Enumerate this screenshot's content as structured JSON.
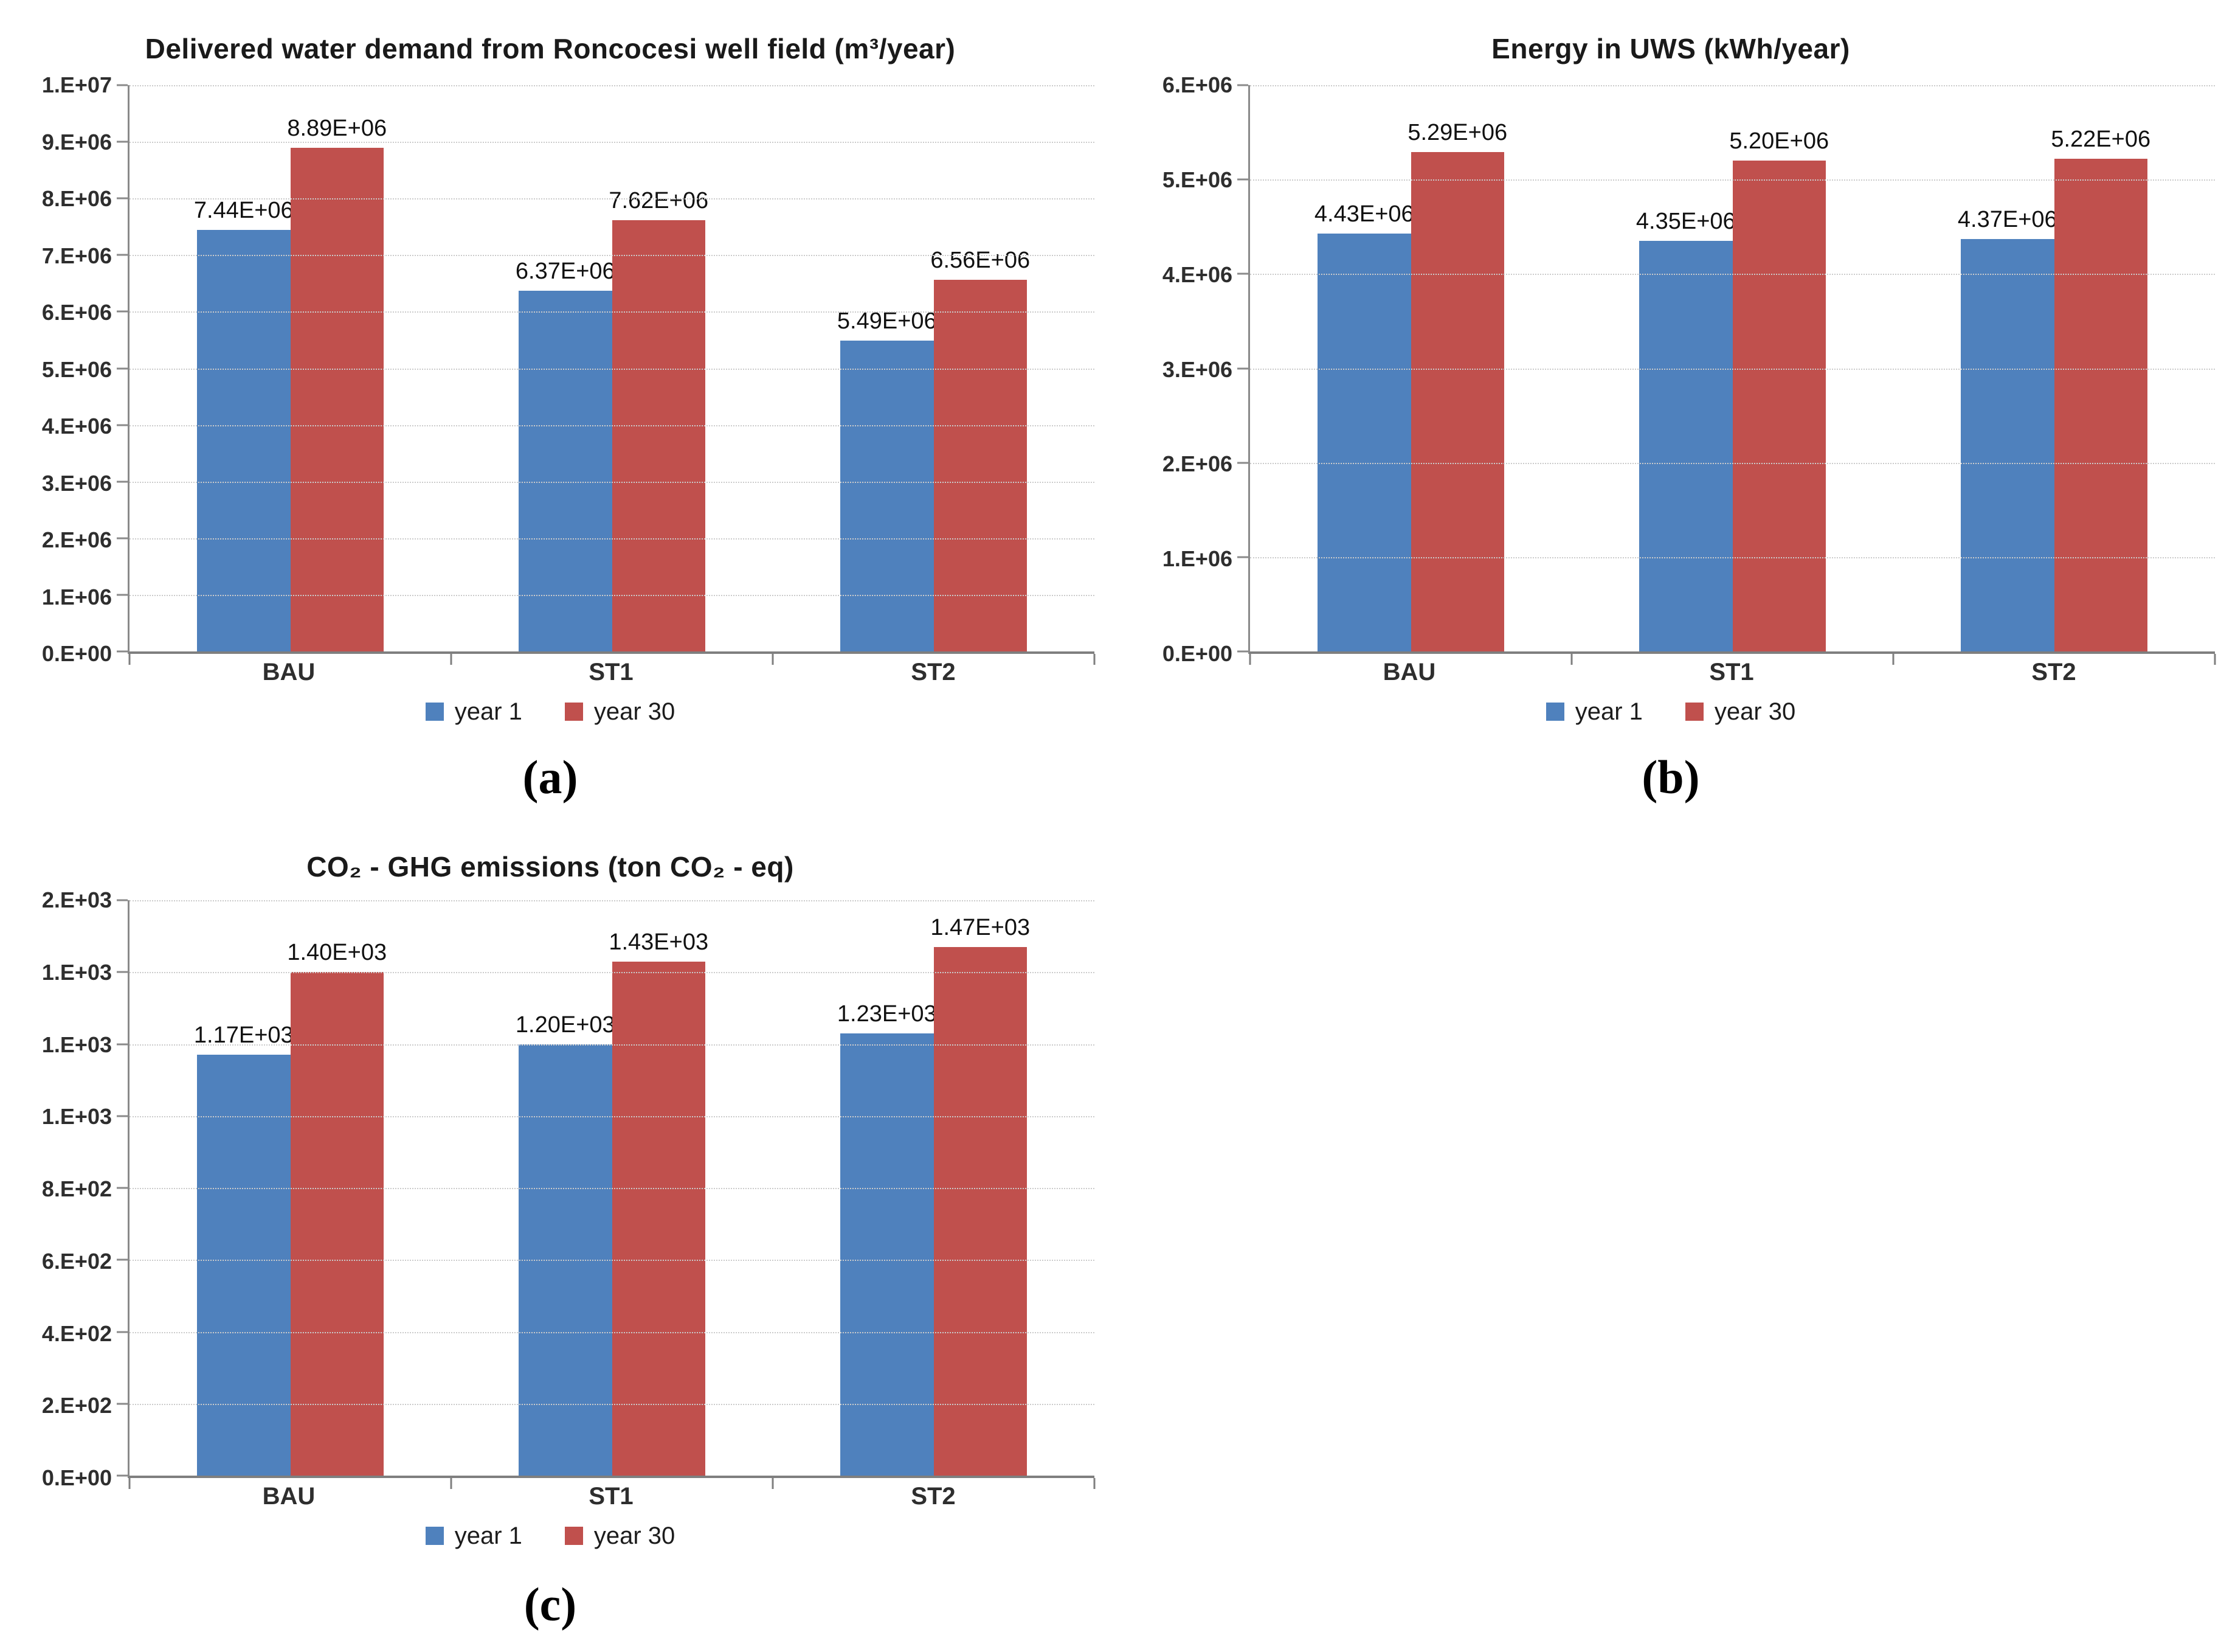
{
  "figure": {
    "series_colors": {
      "year 1": "#4F81BD",
      "year 30": "#C0504D"
    },
    "axis_color": "#7f7f7f",
    "gridline_color": "#cbcbcb"
  },
  "chart_data": [
    {
      "id": "chart-a",
      "type": "bar",
      "title": "Delivered water demand from Roncocesi well field (m³/year)",
      "caption": "(a)",
      "categories": [
        "BAU",
        "ST1",
        "ST2"
      ],
      "series": [
        {
          "name": "year 1",
          "color": "#4F81BD",
          "values": [
            7440000,
            6370000,
            5490000
          ],
          "labels": [
            "7.44E+06",
            "6.37E+06",
            "5.49E+06"
          ]
        },
        {
          "name": "year 30",
          "color": "#C0504D",
          "values": [
            8890000,
            7620000,
            6560000
          ],
          "labels": [
            "8.89E+06",
            "7.62E+06",
            "6.56E+06"
          ]
        }
      ],
      "ylim": [
        0,
        10000000
      ],
      "y_tick_values": [
        10000000,
        9000000,
        8000000,
        7000000,
        6000000,
        5000000,
        4000000,
        3000000,
        2000000,
        1000000,
        0
      ],
      "y_tick_labels": [
        "1.E+07",
        "9.E+06",
        "8.E+06",
        "7.E+06",
        "6.E+06",
        "5.E+06",
        "4.E+06",
        "3.E+06",
        "2.E+06",
        "1.E+06",
        "0.E+00"
      ],
      "grid": true,
      "legend_position": "bottom"
    },
    {
      "id": "chart-b",
      "type": "bar",
      "title": "Energy in UWS (kWh/year)",
      "caption": "(b)",
      "categories": [
        "BAU",
        "ST1",
        "ST2"
      ],
      "series": [
        {
          "name": "year 1",
          "color": "#4F81BD",
          "values": [
            4430000,
            4350000,
            4370000
          ],
          "labels": [
            "4.43E+06",
            "4.35E+06",
            "4.37E+06"
          ]
        },
        {
          "name": "year 30",
          "color": "#C0504D",
          "values": [
            5290000,
            5200000,
            5220000
          ],
          "labels": [
            "5.29E+06",
            "5.20E+06",
            "5.22E+06"
          ]
        }
      ],
      "ylim": [
        0,
        6000000
      ],
      "y_tick_values": [
        6000000,
        5000000,
        4000000,
        3000000,
        2000000,
        1000000,
        0
      ],
      "y_tick_labels": [
        "6.E+06",
        "5.E+06",
        "4.E+06",
        "3.E+06",
        "2.E+06",
        "1.E+06",
        "0.E+00"
      ],
      "grid": true,
      "legend_position": "bottom"
    },
    {
      "id": "chart-c",
      "type": "bar",
      "title": "CO₂ - GHG emissions (ton CO₂ - eq)",
      "caption": "(c)",
      "categories": [
        "BAU",
        "ST1",
        "ST2"
      ],
      "series": [
        {
          "name": "year 1",
          "color": "#4F81BD",
          "values": [
            1170,
            1200,
            1230
          ],
          "labels": [
            "1.17E+03",
            "1.20E+03",
            "1.23E+03"
          ]
        },
        {
          "name": "year 30",
          "color": "#C0504D",
          "values": [
            1400,
            1430,
            1470
          ],
          "labels": [
            "1.40E+03",
            "1.43E+03",
            "1.47E+03"
          ]
        }
      ],
      "ylim": [
        0,
        1600
      ],
      "y_tick_values": [
        1600,
        1400,
        1200,
        1000,
        800,
        600,
        400,
        200,
        0
      ],
      "y_tick_labels": [
        "2.E+03",
        "1.E+03",
        "1.E+03",
        "1.E+03",
        "8.E+02",
        "6.E+02",
        "4.E+02",
        "2.E+02",
        "0.E+00"
      ],
      "grid": true,
      "legend_position": "bottom"
    }
  ]
}
